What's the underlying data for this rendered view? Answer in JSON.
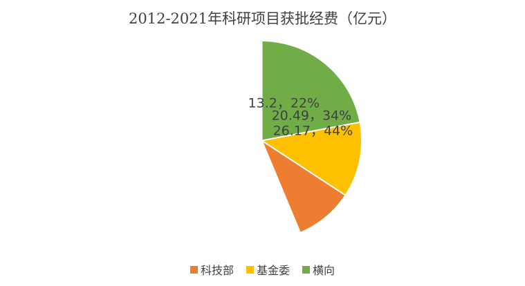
{
  "chart_data": {
    "type": "pie",
    "title": "2012-2021年科研项目获批经费（亿元）",
    "unit": "亿元",
    "start_angle_deg": 0,
    "direction": "clockwise",
    "legend_position": "bottom",
    "background_color": "#FFFFFF",
    "title_color": "#404040",
    "label_color": "#404040",
    "slice_border_color": "#FFFFFF",
    "slices": [
      {
        "name": "科技部",
        "value": 26.17,
        "percent": "44%",
        "label": "26.17，44%",
        "color": "#ED7D31"
      },
      {
        "name": "基金委",
        "value": 20.49,
        "percent": "34%",
        "label": "20.49，34%",
        "color": "#FFC000"
      },
      {
        "name": "横向",
        "value": 13.2,
        "percent": "22%",
        "label": "13.2，22%",
        "color": "#70AD47"
      }
    ]
  }
}
